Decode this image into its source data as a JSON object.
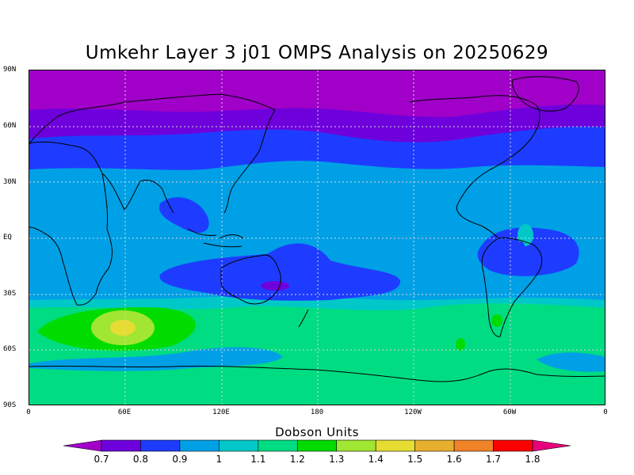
{
  "title": "Umkehr Layer 3 j01 OMPS Analysis on 20250629",
  "lat_labels": [
    "90N",
    "60N",
    "30N",
    "EQ",
    "30S",
    "60S",
    "90S"
  ],
  "lon_labels": [
    "0",
    "60E",
    "120E",
    "180",
    "120W",
    "60W",
    "0"
  ],
  "colorbar": {
    "title": "Dobson Units",
    "labels": [
      "0.7",
      "0.8",
      "0.9",
      "1",
      "1.1",
      "1.2",
      "1.3",
      "1.4",
      "1.5",
      "1.6",
      "1.7",
      "1.8"
    ],
    "colors": [
      "#a000c8",
      "#6e00dc",
      "#1e3cff",
      "#00a0e6",
      "#00c8c8",
      "#00dc82",
      "#00dc00",
      "#a0e632",
      "#e6dc32",
      "#e6af2d",
      "#f08228",
      "#fa0000",
      "#e6007a"
    ]
  }
}
